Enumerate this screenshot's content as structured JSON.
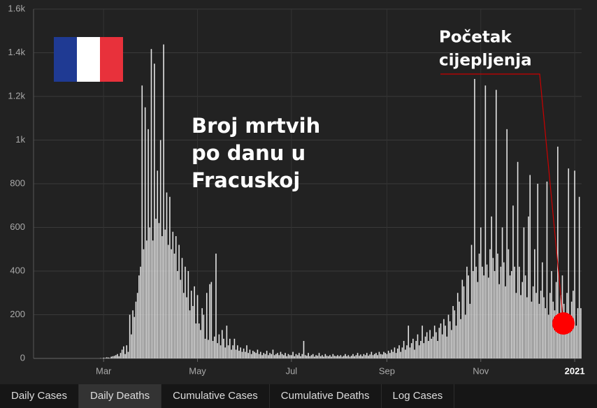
{
  "chart_data": {
    "type": "bar",
    "color": "#e6e6e6",
    "grid": true,
    "ylim": [
      0,
      1600
    ],
    "yticks": [
      0,
      200,
      400,
      600,
      800,
      {
        "value": 1000,
        "label": "1k"
      },
      {
        "value": 1200,
        "label": "1.2k"
      },
      {
        "value": 1400,
        "label": "1.4k"
      },
      {
        "value": 1600,
        "label": "1.6k"
      }
    ],
    "annotation_lines": [
      "Broj mrtvih",
      "po danu u",
      "Fracuskoj"
    ],
    "marker_label_lines": [
      "Početak",
      "cijepljenja"
    ],
    "categories": [
      null,
      null,
      null,
      null,
      null,
      null,
      null,
      null,
      null,
      null,
      null,
      null,
      null,
      null,
      null,
      null,
      null,
      null,
      null,
      null,
      null,
      null,
      null,
      null,
      null,
      null,
      null,
      null,
      null,
      null,
      null,
      null,
      null,
      null,
      null,
      null,
      null,
      null,
      null,
      null,
      null,
      null,
      null,
      null,
      null,
      "Mar",
      null,
      null,
      null,
      null,
      null,
      null,
      null,
      null,
      null,
      null,
      null,
      null,
      null,
      null,
      null,
      null,
      null,
      null,
      null,
      null,
      null,
      null,
      null,
      null,
      null,
      null,
      null,
      null,
      null,
      null,
      null,
      null,
      null,
      null,
      null,
      null,
      null,
      null,
      null,
      null,
      null,
      null,
      null,
      null,
      null,
      null,
      null,
      null,
      null,
      null,
      null,
      null,
      null,
      null,
      null,
      null,
      null,
      null,
      null,
      null,
      "May",
      null,
      null,
      null,
      null,
      null,
      null,
      null,
      null,
      null,
      null,
      null,
      null,
      null,
      null,
      null,
      null,
      null,
      null,
      null,
      null,
      null,
      null,
      null,
      null,
      null,
      null,
      null,
      null,
      null,
      null,
      null,
      null,
      null,
      null,
      null,
      null,
      null,
      null,
      null,
      null,
      null,
      null,
      null,
      null,
      null,
      null,
      null,
      null,
      null,
      null,
      null,
      null,
      null,
      null,
      null,
      null,
      null,
      null,
      null,
      null,
      "Jul",
      null,
      null,
      null,
      null,
      null,
      null,
      null,
      null,
      null,
      null,
      null,
      null,
      null,
      null,
      null,
      null,
      null,
      null,
      null,
      null,
      null,
      null,
      null,
      null,
      null,
      null,
      null,
      null,
      null,
      null,
      null,
      null,
      null,
      null,
      null,
      null,
      null,
      null,
      null,
      null,
      null,
      null,
      null,
      null,
      null,
      null,
      null,
      null,
      null,
      null,
      null,
      null,
      null,
      null,
      null,
      null,
      null,
      null,
      null,
      null,
      null,
      "Sep",
      null,
      null,
      null,
      null,
      null,
      null,
      null,
      null,
      null,
      null,
      null,
      null,
      null,
      null,
      null,
      null,
      null,
      null,
      null,
      null,
      null,
      null,
      null,
      null,
      null,
      null,
      null,
      null,
      null,
      null,
      null,
      null,
      null,
      null,
      null,
      null,
      null,
      null,
      null,
      null,
      null,
      null,
      null,
      null,
      null,
      null,
      null,
      null,
      null,
      null,
      null,
      null,
      null,
      null,
      null,
      null,
      null,
      null,
      null,
      null,
      "Nov",
      null,
      null,
      null,
      null,
      null,
      null,
      null,
      null,
      null,
      null,
      null,
      null,
      null,
      null,
      null,
      null,
      null,
      null,
      null,
      null,
      null,
      null,
      null,
      null,
      null,
      null,
      null,
      null,
      null,
      null,
      null,
      null,
      null,
      null,
      null,
      null,
      null,
      null,
      null,
      null,
      null,
      null,
      null,
      null,
      null,
      null,
      null,
      null,
      null,
      null,
      null,
      null,
      null,
      null,
      null,
      null,
      null,
      null,
      null,
      null,
      "2021",
      null,
      null,
      null,
      null
    ],
    "values": [
      0,
      0,
      0,
      0,
      0,
      0,
      0,
      0,
      0,
      0,
      0,
      0,
      0,
      0,
      0,
      0,
      0,
      0,
      0,
      0,
      0,
      0,
      0,
      0,
      0,
      0,
      0,
      0,
      0,
      0,
      0,
      0,
      0,
      0,
      0,
      0,
      0,
      0,
      0,
      0,
      0,
      0,
      0,
      1,
      0,
      3,
      2,
      5,
      4,
      2,
      8,
      10,
      12,
      15,
      20,
      10,
      25,
      40,
      55,
      20,
      60,
      30,
      200,
      110,
      220,
      190,
      260,
      300,
      380,
      420,
      1250,
      500,
      1150,
      540,
      1050,
      600,
      1417,
      540,
      1350,
      640,
      860,
      620,
      1000,
      560,
      1438,
      590,
      760,
      520,
      740,
      500,
      580,
      480,
      560,
      400,
      520,
      360,
      460,
      300,
      420,
      280,
      400,
      220,
      310,
      240,
      330,
      160,
      290,
      160,
      130,
      230,
      200,
      90,
      300,
      85,
      340,
      350,
      80,
      100,
      480,
      70,
      110,
      60,
      130,
      90,
      50,
      150,
      60,
      90,
      40,
      60,
      90,
      40,
      60,
      35,
      50,
      30,
      45,
      30,
      60,
      25,
      40,
      20,
      35,
      30,
      25,
      40,
      20,
      30,
      15,
      25,
      20,
      35,
      15,
      25,
      20,
      40,
      15,
      20,
      25,
      15,
      30,
      20,
      15,
      25,
      10,
      20,
      15,
      15,
      30,
      10,
      20,
      15,
      25,
      10,
      20,
      80,
      15,
      12,
      25,
      10,
      15,
      20,
      8,
      15,
      12,
      25,
      10,
      15,
      8,
      20,
      12,
      10,
      15,
      8,
      20,
      12,
      10,
      15,
      10,
      15,
      8,
      12,
      20,
      10,
      15,
      8,
      12,
      20,
      10,
      15,
      25,
      12,
      18,
      10,
      20,
      15,
      25,
      12,
      18,
      30,
      15,
      20,
      25,
      15,
      30,
      20,
      18,
      30,
      25,
      20,
      35,
      25,
      40,
      30,
      50,
      25,
      45,
      60,
      30,
      50,
      80,
      40,
      60,
      150,
      50,
      70,
      90,
      40,
      80,
      110,
      60,
      80,
      150,
      70,
      100,
      120,
      80,
      130,
      90,
      100,
      150,
      120,
      80,
      140,
      160,
      110,
      180,
      150,
      100,
      200,
      170,
      130,
      240,
      220,
      150,
      300,
      260,
      180,
      360,
      330,
      200,
      420,
      380,
      250,
      520,
      400,
      1280,
      420,
      350,
      480,
      600,
      420,
      380,
      1250,
      430,
      370,
      500,
      650,
      460,
      400,
      1230,
      480,
      340,
      420,
      600,
      440,
      330,
      1050,
      500,
      380,
      400,
      700,
      420,
      300,
      900,
      420,
      290,
      350,
      600,
      380,
      280,
      650,
      840,
      260,
      330,
      500,
      300,
      800,
      250,
      310,
      440,
      280,
      230,
      810,
      200,
      300,
      400,
      260,
      220,
      350,
      970,
      180,
      290,
      380,
      250,
      200,
      300,
      870,
      160,
      260,
      310,
      860,
      150,
      230,
      740,
      230
    ]
  },
  "tabs": [
    "Daily Cases",
    "Daily Deaths",
    "Cumulative Cases",
    "Cumulative Deaths",
    "Log Cases"
  ],
  "selected_tab": 1
}
